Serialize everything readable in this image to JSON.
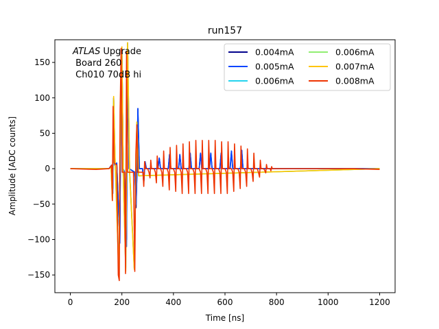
{
  "chart_data": {
    "type": "line",
    "title": "run157",
    "xlabel": "Time [ns]",
    "ylabel": "Amplitude [ADC counts]",
    "xlim": [
      -60,
      1260
    ],
    "ylim": [
      -175,
      182
    ],
    "xticks": [
      0,
      200,
      400,
      600,
      800,
      1000,
      1200
    ],
    "yticks": [
      -150,
      -100,
      -50,
      0,
      50,
      100,
      150
    ],
    "grid": false,
    "legend_location": "top-right",
    "annotation": {
      "line1_italic": "ATLAS",
      "line1_rest": " Upgrade",
      "line2": " Board 260",
      "line3": " Ch010 70dB hi"
    },
    "series": [
      {
        "name": "0.004mA",
        "color": "#00008b",
        "points": [
          [
            0,
            0
          ],
          [
            150,
            0
          ],
          [
            160,
            5
          ],
          [
            165,
            -28
          ],
          [
            168,
            100
          ],
          [
            172,
            5
          ],
          [
            180,
            8
          ],
          [
            192,
            -105
          ],
          [
            196,
            95
          ],
          [
            200,
            170
          ],
          [
            205,
            0
          ],
          [
            210,
            -5
          ],
          [
            218,
            -100
          ],
          [
            222,
            177
          ],
          [
            228,
            0
          ],
          [
            250,
            -5
          ],
          [
            255,
            -55
          ],
          [
            258,
            -10
          ],
          [
            262,
            85
          ],
          [
            268,
            0
          ],
          [
            280,
            0
          ],
          [
            285,
            -20
          ],
          [
            290,
            10
          ],
          [
            295,
            0
          ],
          [
            340,
            0
          ],
          [
            345,
            15
          ],
          [
            350,
            0
          ],
          [
            380,
            0
          ],
          [
            385,
            20
          ],
          [
            390,
            0
          ],
          [
            420,
            0
          ],
          [
            425,
            20
          ],
          [
            430,
            0
          ],
          [
            460,
            0
          ],
          [
            465,
            22
          ],
          [
            470,
            0
          ],
          [
            500,
            0
          ],
          [
            505,
            22
          ],
          [
            510,
            0
          ],
          [
            540,
            0
          ],
          [
            545,
            22
          ],
          [
            550,
            0
          ],
          [
            580,
            0
          ],
          [
            585,
            22
          ],
          [
            590,
            0
          ],
          [
            620,
            0
          ],
          [
            625,
            25
          ],
          [
            630,
            0
          ],
          [
            660,
            0
          ],
          [
            665,
            26
          ],
          [
            670,
            0
          ],
          [
            700,
            0
          ],
          [
            800,
            0
          ],
          [
            1000,
            0
          ],
          [
            1200,
            0
          ]
        ]
      },
      {
        "name": "0.005mA",
        "color": "#0044ff",
        "points": [
          [
            0,
            0
          ],
          [
            150,
            0
          ],
          [
            160,
            5
          ],
          [
            165,
            -35
          ],
          [
            168,
            100
          ],
          [
            172,
            5
          ],
          [
            180,
            8
          ],
          [
            192,
            -105
          ],
          [
            196,
            95
          ],
          [
            200,
            170
          ],
          [
            205,
            0
          ],
          [
            210,
            -5
          ],
          [
            218,
            -110
          ],
          [
            222,
            177
          ],
          [
            228,
            0
          ],
          [
            250,
            -5
          ],
          [
            255,
            -50
          ],
          [
            258,
            -10
          ],
          [
            262,
            85
          ],
          [
            268,
            0
          ],
          [
            280,
            0
          ],
          [
            285,
            -20
          ],
          [
            290,
            10
          ],
          [
            295,
            0
          ],
          [
            340,
            0
          ],
          [
            345,
            15
          ],
          [
            350,
            0
          ],
          [
            380,
            0
          ],
          [
            385,
            20
          ],
          [
            390,
            0
          ],
          [
            420,
            0
          ],
          [
            425,
            20
          ],
          [
            430,
            0
          ],
          [
            460,
            0
          ],
          [
            465,
            22
          ],
          [
            470,
            0
          ],
          [
            500,
            0
          ],
          [
            505,
            22
          ],
          [
            510,
            0
          ],
          [
            540,
            0
          ],
          [
            545,
            22
          ],
          [
            550,
            0
          ],
          [
            580,
            0
          ],
          [
            585,
            22
          ],
          [
            590,
            0
          ],
          [
            620,
            0
          ],
          [
            625,
            25
          ],
          [
            630,
            0
          ],
          [
            660,
            0
          ],
          [
            665,
            26
          ],
          [
            670,
            0
          ],
          [
            700,
            0
          ],
          [
            800,
            0
          ],
          [
            1000,
            0
          ],
          [
            1200,
            0
          ]
        ]
      },
      {
        "name": "0.006mA",
        "color": "#22d3ee",
        "points": [
          [
            0,
            0
          ],
          [
            150,
            0
          ],
          [
            158,
            2
          ],
          [
            163,
            -40
          ],
          [
            168,
            100
          ],
          [
            174,
            8
          ],
          [
            188,
            -145
          ],
          [
            195,
            90
          ],
          [
            200,
            170
          ],
          [
            205,
            -5
          ],
          [
            215,
            -140
          ],
          [
            222,
            177
          ],
          [
            230,
            -5
          ],
          [
            248,
            -140
          ],
          [
            258,
            65
          ],
          [
            265,
            -10
          ],
          [
            1200,
            0
          ]
        ]
      },
      {
        "name": "0.006mA",
        "color": "#90ee70",
        "points": [
          [
            0,
            0
          ],
          [
            150,
            0
          ],
          [
            158,
            2
          ],
          [
            163,
            -42
          ],
          [
            168,
            100
          ],
          [
            174,
            8
          ],
          [
            188,
            -148
          ],
          [
            195,
            90
          ],
          [
            200,
            170
          ],
          [
            205,
            -5
          ],
          [
            215,
            -142
          ],
          [
            222,
            177
          ],
          [
            230,
            -5
          ],
          [
            248,
            -140
          ],
          [
            258,
            65
          ],
          [
            265,
            -10
          ],
          [
            1200,
            0
          ]
        ]
      },
      {
        "name": "0.007mA",
        "color": "#ffc400",
        "points": [
          [
            0,
            0
          ],
          [
            150,
            0
          ],
          [
            158,
            2
          ],
          [
            163,
            -45
          ],
          [
            168,
            102
          ],
          [
            174,
            8
          ],
          [
            188,
            -150
          ],
          [
            195,
            90
          ],
          [
            200,
            172
          ],
          [
            205,
            -5
          ],
          [
            215,
            -145
          ],
          [
            222,
            178
          ],
          [
            230,
            -5
          ],
          [
            248,
            -142
          ],
          [
            258,
            66
          ],
          [
            265,
            -10
          ],
          [
            1200,
            0
          ]
        ]
      },
      {
        "name": "0.008mA",
        "color": "#ee3300",
        "points": [
          [
            0,
            0
          ],
          [
            100,
            -1
          ],
          [
            150,
            0
          ],
          [
            155,
            2
          ],
          [
            160,
            5
          ],
          [
            163,
            -45
          ],
          [
            166,
            88
          ],
          [
            170,
            8
          ],
          [
            180,
            5
          ],
          [
            186,
            -150
          ],
          [
            190,
            -158
          ],
          [
            193,
            80
          ],
          [
            197,
            170
          ],
          [
            201,
            -5
          ],
          [
            210,
            -5
          ],
          [
            214,
            -148
          ],
          [
            218,
            165
          ],
          [
            222,
            -5
          ],
          [
            230,
            -5
          ],
          [
            245,
            -5
          ],
          [
            250,
            -145
          ],
          [
            254,
            20
          ],
          [
            258,
            62
          ],
          [
            262,
            -5
          ],
          [
            270,
            -5
          ],
          [
            282,
            -5
          ],
          [
            285,
            -25
          ],
          [
            288,
            10
          ],
          [
            292,
            0
          ],
          [
            300,
            0
          ],
          [
            305,
            -5
          ],
          [
            309,
            -13
          ],
          [
            312,
            12
          ],
          [
            315,
            0
          ],
          [
            325,
            0
          ],
          [
            330,
            -5
          ],
          [
            334,
            -20
          ],
          [
            337,
            18
          ],
          [
            340,
            0
          ],
          [
            350,
            0
          ],
          [
            355,
            -5
          ],
          [
            359,
            -25
          ],
          [
            362,
            25
          ],
          [
            365,
            0
          ],
          [
            375,
            0
          ],
          [
            380,
            -5
          ],
          [
            384,
            -30
          ],
          [
            387,
            30
          ],
          [
            390,
            0
          ],
          [
            400,
            0
          ],
          [
            405,
            -5
          ],
          [
            409,
            -32
          ],
          [
            412,
            33
          ],
          [
            415,
            0
          ],
          [
            425,
            0
          ],
          [
            430,
            -5
          ],
          [
            434,
            -35
          ],
          [
            437,
            35
          ],
          [
            440,
            0
          ],
          [
            450,
            0
          ],
          [
            455,
            -5
          ],
          [
            459,
            -35
          ],
          [
            462,
            38
          ],
          [
            465,
            0
          ],
          [
            475,
            0
          ],
          [
            480,
            -5
          ],
          [
            484,
            -35
          ],
          [
            487,
            40
          ],
          [
            490,
            0
          ],
          [
            500,
            0
          ],
          [
            505,
            -5
          ],
          [
            509,
            -35
          ],
          [
            512,
            40
          ],
          [
            515,
            0
          ],
          [
            525,
            0
          ],
          [
            530,
            -5
          ],
          [
            534,
            -35
          ],
          [
            537,
            40
          ],
          [
            540,
            0
          ],
          [
            550,
            0
          ],
          [
            555,
            -5
          ],
          [
            559,
            -35
          ],
          [
            562,
            40
          ],
          [
            565,
            0
          ],
          [
            575,
            0
          ],
          [
            580,
            -5
          ],
          [
            584,
            -35
          ],
          [
            587,
            38
          ],
          [
            590,
            0
          ],
          [
            600,
            0
          ],
          [
            605,
            -5
          ],
          [
            609,
            -35
          ],
          [
            612,
            38
          ],
          [
            615,
            0
          ],
          [
            625,
            0
          ],
          [
            630,
            -5
          ],
          [
            634,
            -32
          ],
          [
            637,
            35
          ],
          [
            640,
            0
          ],
          [
            650,
            0
          ],
          [
            655,
            -5
          ],
          [
            659,
            -28
          ],
          [
            662,
            32
          ],
          [
            665,
            0
          ],
          [
            675,
            0
          ],
          [
            680,
            -5
          ],
          [
            684,
            -25
          ],
          [
            687,
            28
          ],
          [
            690,
            0
          ],
          [
            700,
            0
          ],
          [
            705,
            -5
          ],
          [
            709,
            -18
          ],
          [
            712,
            22
          ],
          [
            715,
            0
          ],
          [
            725,
            0
          ],
          [
            730,
            -5
          ],
          [
            734,
            -12
          ],
          [
            737,
            12
          ],
          [
            740,
            0
          ],
          [
            750,
            0
          ],
          [
            755,
            -3
          ],
          [
            758,
            -6
          ],
          [
            761,
            6
          ],
          [
            764,
            0
          ],
          [
            775,
            0
          ],
          [
            778,
            -3
          ],
          [
            781,
            3
          ],
          [
            784,
            0
          ],
          [
            800,
            0
          ],
          [
            900,
            0
          ],
          [
            1000,
            0
          ],
          [
            1100,
            0
          ],
          [
            1200,
            -1
          ]
        ]
      }
    ]
  }
}
